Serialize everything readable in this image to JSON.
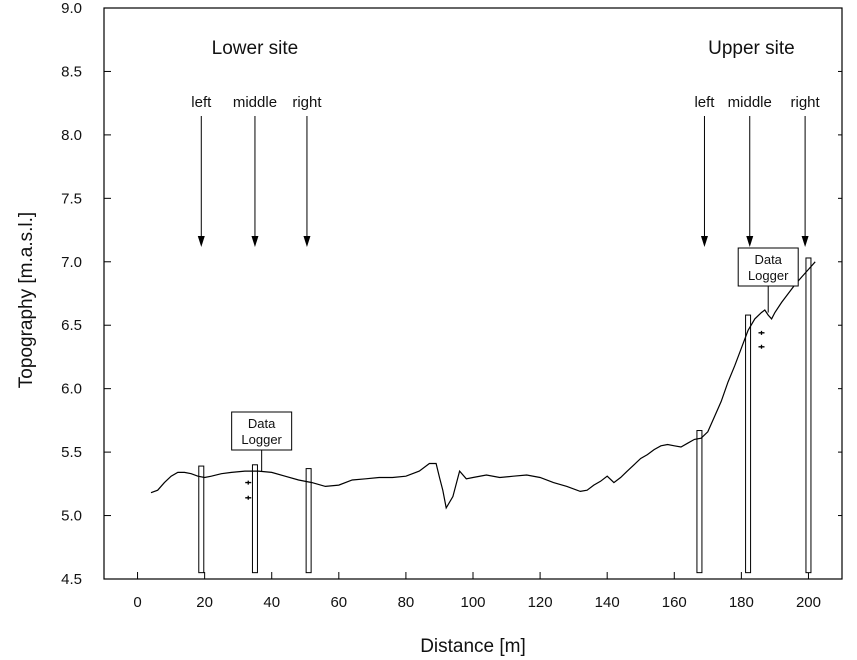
{
  "chart_data": {
    "type": "line",
    "title": "",
    "xlabel": "Distance [m]",
    "ylabel": "Topography  [m.a.s.l.]",
    "xlim": [
      -10,
      210
    ],
    "ylim": [
      4.5,
      9.0
    ],
    "x_ticks": [
      0,
      20,
      40,
      60,
      80,
      100,
      120,
      140,
      160,
      180,
      200
    ],
    "y_ticks": [
      4.5,
      5.0,
      5.5,
      6.0,
      6.5,
      7.0,
      7.5,
      8.0,
      8.5,
      9.0
    ],
    "x_tick_labels": [
      "0",
      "20",
      "40",
      "60",
      "80",
      "100",
      "120",
      "140",
      "160",
      "180",
      "200"
    ],
    "y_tick_labels": [
      "4.5",
      "5.0",
      "5.5",
      "6.0",
      "6.5",
      "7.0",
      "7.5",
      "8.0",
      "8.5",
      "9.0"
    ],
    "grid": false,
    "series": [
      {
        "x": [
          4,
          6,
          8,
          10,
          12,
          14,
          16,
          18,
          20,
          22,
          25,
          28,
          32,
          36,
          40,
          44,
          48,
          52,
          56,
          60,
          64,
          68,
          72,
          76,
          80,
          84,
          87,
          89,
          90,
          91,
          92,
          94,
          96,
          98,
          100,
          104,
          108,
          112,
          116,
          120,
          124,
          128,
          132,
          134,
          136,
          138,
          140,
          142,
          144,
          146,
          148,
          150,
          152,
          154,
          156,
          158,
          160,
          162,
          164,
          166,
          168,
          170,
          172,
          174,
          176,
          178,
          180,
          182,
          184,
          186,
          187,
          188,
          189,
          190,
          192,
          194,
          196,
          198,
          200,
          202
        ],
        "y": [
          5.18,
          5.2,
          5.26,
          5.31,
          5.34,
          5.34,
          5.33,
          5.31,
          5.3,
          5.31,
          5.33,
          5.34,
          5.35,
          5.35,
          5.34,
          5.31,
          5.28,
          5.26,
          5.23,
          5.24,
          5.28,
          5.29,
          5.3,
          5.3,
          5.31,
          5.35,
          5.41,
          5.41,
          5.3,
          5.2,
          5.06,
          5.15,
          5.35,
          5.29,
          5.3,
          5.32,
          5.3,
          5.31,
          5.32,
          5.3,
          5.26,
          5.23,
          5.19,
          5.2,
          5.24,
          5.27,
          5.31,
          5.26,
          5.3,
          5.35,
          5.4,
          5.45,
          5.48,
          5.52,
          5.55,
          5.56,
          5.55,
          5.54,
          5.57,
          5.6,
          5.61,
          5.66,
          5.78,
          5.9,
          6.05,
          6.18,
          6.32,
          6.46,
          6.55,
          6.6,
          6.62,
          6.58,
          6.55,
          6.6,
          6.68,
          6.75,
          6.82,
          6.88,
          6.94,
          7.0
        ]
      }
    ],
    "sites": [
      {
        "label": "Lower site",
        "x": 35
      },
      {
        "label": "Upper site",
        "x": 183
      }
    ],
    "arrows": [
      {
        "label": "left",
        "x": 19
      },
      {
        "label": "middle",
        "x": 35
      },
      {
        "label": "right",
        "x": 50.5
      },
      {
        "label": "left",
        "x": 169
      },
      {
        "label": "middle",
        "x": 182.5
      },
      {
        "label": "right",
        "x": 199
      }
    ],
    "bars": [
      {
        "x": 19,
        "top": 5.39
      },
      {
        "x": 35,
        "top": 5.4
      },
      {
        "x": 51,
        "top": 5.37
      },
      {
        "x": 167.5,
        "top": 5.67
      },
      {
        "x": 182,
        "top": 6.58
      },
      {
        "x": 200,
        "top": 7.03
      }
    ],
    "markers": [
      {
        "x": 33,
        "y": 5.26
      },
      {
        "x": 33,
        "y": 5.14
      },
      {
        "x": 186,
        "y": 6.44
      },
      {
        "x": 186,
        "y": 6.33
      }
    ],
    "loggers": [
      {
        "line1": "Data",
        "line2": "Logger",
        "x": 37
      },
      {
        "line1": "Data",
        "line2": "Logger",
        "x": 188
      }
    ]
  }
}
